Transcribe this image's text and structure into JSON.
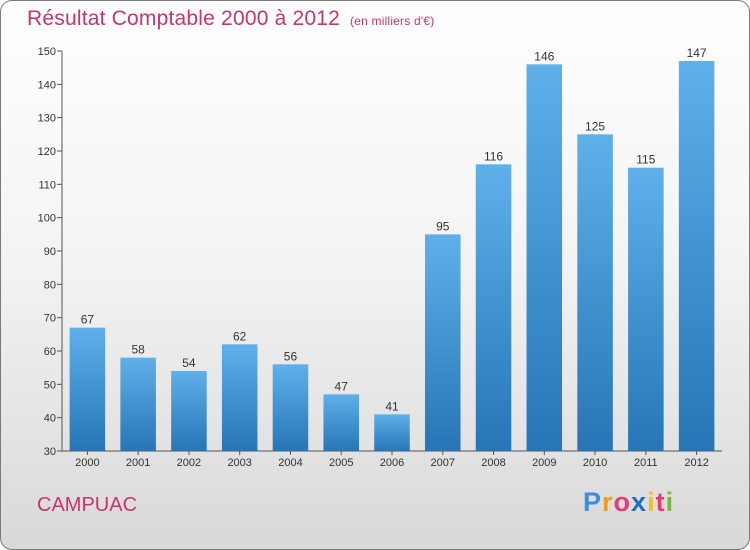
{
  "chart_data": {
    "type": "bar",
    "title": "Résultat Comptable 2000 à 2012",
    "subtitle": "(en milliers d'€)",
    "categories": [
      "2000",
      "2001",
      "2002",
      "2003",
      "2004",
      "2005",
      "2006",
      "2007",
      "2008",
      "2009",
      "2010",
      "2011",
      "2012"
    ],
    "values": [
      67,
      58,
      54,
      62,
      56,
      47,
      41,
      95,
      116,
      146,
      125,
      115,
      147
    ],
    "ylim": [
      30,
      150
    ],
    "yticks": [
      30,
      40,
      50,
      60,
      70,
      80,
      90,
      100,
      110,
      120,
      130,
      140,
      150
    ],
    "xlabel": "",
    "ylabel": "",
    "grid": false,
    "bar_color": "#3d92d6"
  },
  "footer": {
    "commune": "CAMPUAC",
    "brand_letters": [
      "P",
      "r",
      "o",
      "x",
      "i",
      "t",
      "i"
    ],
    "brand_colors": [
      "#3a8fd8",
      "#f39a1e",
      "#e83a73",
      "#1a6fbf",
      "#f2c21a",
      "#e83a73",
      "#7ab83a"
    ]
  }
}
